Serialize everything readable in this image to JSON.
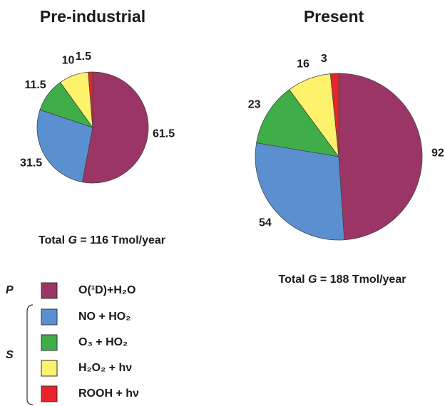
{
  "chart_data": [
    {
      "type": "pie",
      "title": "Pre-industrial",
      "values": [
        61.5,
        31.5,
        11.5,
        10,
        1.5
      ],
      "note": [
        "Total ",
        "G",
        " = 116 Tmol/year"
      ]
    },
    {
      "type": "pie",
      "title": "Present",
      "values": [
        92,
        54,
        23,
        16,
        3
      ],
      "note": [
        "Total ",
        "G",
        " = 188 Tmol/year"
      ]
    }
  ],
  "legend": {
    "entries": [
      {
        "name": "O(¹D)+H₂O",
        "color": "#9b3566"
      },
      {
        "name": "NO + HO₂",
        "color": "#5b90d0"
      },
      {
        "name": "O₃ + HO₂",
        "color": "#3fae49"
      },
      {
        "name": "H₂O₂ + hν",
        "color": "#fcf26b"
      },
      {
        "name": "ROOH + hν",
        "color": "#e8242b"
      }
    ],
    "groups": [
      {
        "label": "P",
        "items": [
          0
        ]
      },
      {
        "label": "S",
        "items": [
          1,
          2,
          3,
          4
        ]
      }
    ]
  }
}
